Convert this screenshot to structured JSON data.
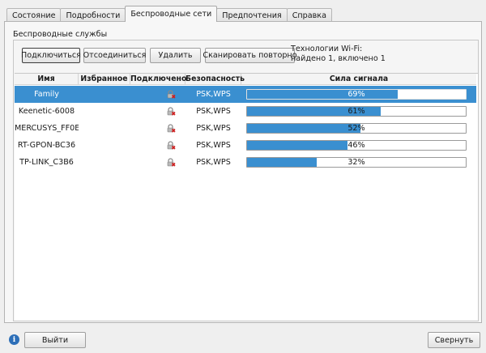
{
  "tabs": [
    {
      "label": "Состояние"
    },
    {
      "label": "Подробности"
    },
    {
      "label": "Беспроводные сети",
      "active": true
    },
    {
      "label": "Предпочтения"
    },
    {
      "label": "Справка"
    }
  ],
  "group_title": "Беспроводные службы",
  "buttons": {
    "connect": "Подключиться",
    "disconnect": "Отсоединиться",
    "remove": "Удалить",
    "rescan": "Сканировать повторно"
  },
  "wifi_tech": {
    "line1": "Технологии Wi-Fi:",
    "line2": "найдено 1, включено 1"
  },
  "columns": [
    "Имя",
    "Избранное",
    "Подключено",
    "Безопасность",
    "Сила сигнала"
  ],
  "networks": [
    {
      "name": "Family",
      "favorite": "",
      "connected_icon": "lock-icon",
      "security": "PSK,WPS",
      "signal": 69,
      "signal_label": "69%",
      "selected": true
    },
    {
      "name": "Keenetic-6008",
      "favorite": "",
      "connected_icon": "lock-icon",
      "security": "PSK,WPS",
      "signal": 61,
      "signal_label": "61%",
      "selected": false
    },
    {
      "name": "MERCUSYS_FF0E",
      "favorite": "",
      "connected_icon": "lock-icon",
      "security": "PSK,WPS",
      "signal": 52,
      "signal_label": "52%",
      "selected": false
    },
    {
      "name": "RT-GPON-BC36",
      "favorite": "",
      "connected_icon": "lock-icon",
      "security": "PSK,WPS",
      "signal": 46,
      "signal_label": "46%",
      "selected": false
    },
    {
      "name": "TP-LINK_C3B6",
      "favorite": "",
      "connected_icon": "lock-icon",
      "security": "PSK,WPS",
      "signal": 32,
      "signal_label": "32%",
      "selected": false
    }
  ],
  "footer": {
    "info_icon": "info-icon",
    "info_glyph": "i",
    "exit": "Выйти",
    "minimize": "Свернуть"
  },
  "colors": {
    "accent": "#3a8fd0",
    "lock_red": "#d02020"
  }
}
